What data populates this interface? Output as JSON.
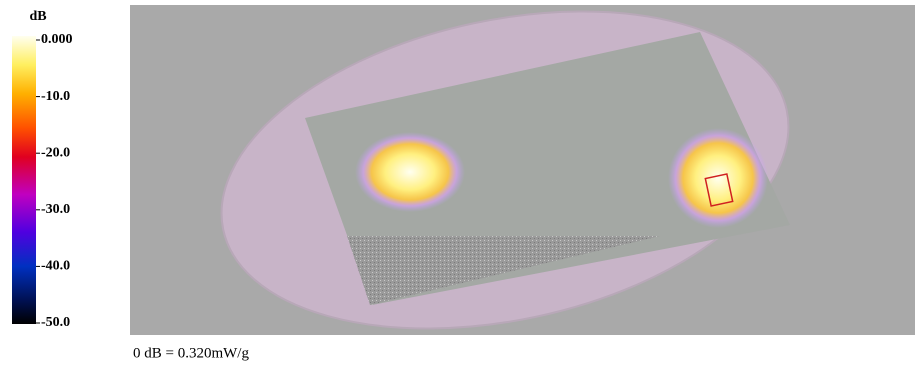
{
  "colorbar": {
    "unit": "dB",
    "ticks": [
      "0.000",
      "-10.0",
      "-20.0",
      "-30.0",
      "-40.0",
      "-50.0"
    ]
  },
  "caption": "0 dB = 0.320mW/g"
}
